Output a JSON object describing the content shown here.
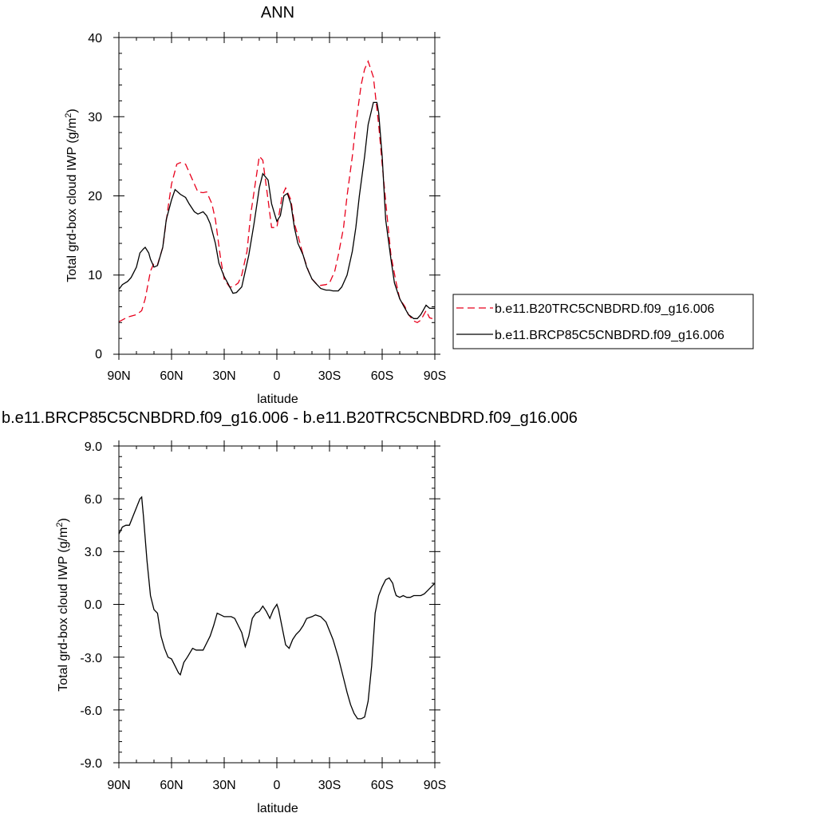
{
  "chart_data": [
    {
      "type": "line",
      "title": "ANN",
      "xlabel": "latitude",
      "ylabel": "Total grd-box cloud IWP (g/m",
      "ylabel_sup": "2",
      "ylabel_tail": ")",
      "xlim": [
        90,
        -90
      ],
      "ylim": [
        0,
        40
      ],
      "xticks": [
        90,
        60,
        30,
        0,
        -30,
        -60,
        -90
      ],
      "xtick_labels": [
        "90N",
        "60N",
        "30N",
        "0",
        "30S",
        "60S",
        "90S"
      ],
      "yticks": [
        0,
        10,
        20,
        30,
        40
      ],
      "ytick_labels": [
        "0",
        "10",
        "20",
        "30",
        "40"
      ],
      "legend_position": "right",
      "series": [
        {
          "name": "b.e11.B20TRC5CNBDRD.f09_g16.006",
          "color": "#e8001c",
          "dash": "dashed",
          "x": [
            90,
            85,
            80,
            77,
            75,
            72,
            70,
            68,
            65,
            62,
            60,
            57,
            55,
            52,
            50,
            47,
            45,
            42,
            40,
            37,
            35,
            32,
            30,
            27,
            25,
            22,
            20,
            17,
            15,
            12,
            10,
            8,
            5,
            3,
            0,
            -3,
            -5,
            -8,
            -10,
            -12,
            -15,
            -18,
            -20,
            -23,
            -25,
            -28,
            -30,
            -33,
            -35,
            -38,
            -40,
            -43,
            -45,
            -48,
            -50,
            -52,
            -55,
            -57,
            -58,
            -60,
            -63,
            -65,
            -68,
            -70,
            -73,
            -75,
            -78,
            -80,
            -82,
            -85,
            -87,
            -90
          ],
          "y": [
            4.1,
            4.7,
            5.0,
            5.5,
            7.0,
            10.5,
            11.5,
            11.3,
            13.5,
            18.5,
            21.5,
            24.0,
            24.2,
            24.0,
            23.0,
            21.5,
            20.5,
            20.4,
            20.5,
            19.0,
            17.0,
            12.0,
            9.5,
            8.5,
            8.5,
            9.0,
            10.0,
            13.0,
            17.5,
            22.0,
            25.0,
            24.5,
            19.5,
            16.0,
            16.0,
            20.0,
            21.0,
            19.5,
            16.5,
            15.0,
            12.5,
            10.5,
            9.5,
            8.8,
            8.7,
            8.8,
            9.0,
            10.5,
            12.5,
            16.0,
            20.0,
            25.0,
            29.0,
            34.0,
            36.0,
            37.0,
            35.0,
            31.0,
            29.0,
            24.0,
            17.0,
            12.5,
            9.0,
            7.0,
            6.0,
            5.0,
            4.2,
            4.0,
            4.3,
            5.5,
            4.6,
            4.4
          ]
        },
        {
          "name": "b.e11.BRCP85C5CNBDRD.f09_g16.006",
          "color": "#000000",
          "dash": "solid",
          "x": [
            90,
            88,
            85,
            83,
            80,
            78,
            76,
            75,
            73,
            72,
            70,
            68,
            65,
            63,
            60,
            58,
            57,
            55,
            52,
            50,
            47,
            45,
            42,
            40,
            38,
            35,
            33,
            30,
            28,
            25,
            23,
            20,
            18,
            16,
            13,
            10,
            8,
            5,
            3,
            1,
            0,
            -2,
            -4,
            -6,
            -8,
            -10,
            -12,
            -15,
            -17,
            -20,
            -22,
            -25,
            -28,
            -30,
            -32,
            -35,
            -37,
            -40,
            -43,
            -45,
            -47,
            -50,
            -52,
            -55,
            -57,
            -58,
            -60,
            -62,
            -65,
            -67,
            -70,
            -72,
            -75,
            -78,
            -80,
            -82,
            -85,
            -87,
            -90
          ],
          "y": [
            8.2,
            8.8,
            9.2,
            9.7,
            11.0,
            12.8,
            13.3,
            13.5,
            12.8,
            12.0,
            11.0,
            11.2,
            13.5,
            17.0,
            19.5,
            20.8,
            20.6,
            20.2,
            19.8,
            19.0,
            18.0,
            17.7,
            18.0,
            17.5,
            16.5,
            14.0,
            11.5,
            9.8,
            9.0,
            7.7,
            7.8,
            8.5,
            10.5,
            12.5,
            16.5,
            21.0,
            22.8,
            22.0,
            19.0,
            17.5,
            16.8,
            17.5,
            20.0,
            20.3,
            19.0,
            16.0,
            14.0,
            12.5,
            11.0,
            9.5,
            9.0,
            8.3,
            8.1,
            8.1,
            8.0,
            8.0,
            8.5,
            10.0,
            13.0,
            16.0,
            20.0,
            25.0,
            29.0,
            31.8,
            31.8,
            30.5,
            25.0,
            17.0,
            12.0,
            9.0,
            7.0,
            6.2,
            5.0,
            4.5,
            4.5,
            5.0,
            6.2,
            5.8,
            5.8
          ]
        }
      ]
    },
    {
      "type": "line",
      "title": "b.e11.BRCP85C5CNBDRD.f09_g16.006 - b.e11.B20TRC5CNBDRD.f09_g16.006",
      "xlabel": "latitude",
      "ylabel": "Total grd-box cloud IWP (g/m",
      "ylabel_sup": "2",
      "ylabel_tail": ")",
      "xlim": [
        90,
        -90
      ],
      "ylim": [
        -9,
        9
      ],
      "xticks": [
        90,
        60,
        30,
        0,
        -30,
        -60,
        -90
      ],
      "xtick_labels": [
        "90N",
        "60N",
        "30N",
        "0",
        "30S",
        "60S",
        "90S"
      ],
      "yticks": [
        -9,
        -6,
        -3,
        0,
        3,
        6,
        9
      ],
      "ytick_labels": [
        "-9.0",
        "-6.0",
        "-3.0",
        "0.0",
        "3.0",
        "6.0",
        "9.0"
      ],
      "series": [
        {
          "color": "#000000",
          "dash": "solid",
          "x": [
            90,
            88,
            86,
            84,
            82,
            80,
            78,
            77,
            76,
            74,
            72,
            70,
            68,
            66,
            64,
            62,
            60,
            58,
            56,
            55,
            53,
            51,
            48,
            46,
            44,
            42,
            40,
            38,
            36,
            34,
            32,
            30,
            28,
            26,
            24,
            22,
            20,
            18,
            16,
            14,
            12,
            10,
            8,
            6,
            4,
            2,
            0,
            -1,
            -3,
            -5,
            -7,
            -9,
            -11,
            -13,
            -15,
            -17,
            -20,
            -22,
            -25,
            -28,
            -30,
            -32,
            -35,
            -38,
            -40,
            -42,
            -44,
            -46,
            -48,
            -50,
            -52,
            -54,
            -55,
            -56,
            -58,
            -60,
            -62,
            -64,
            -66,
            -67,
            -68,
            -70,
            -72,
            -74,
            -76,
            -78,
            -80,
            -82,
            -84,
            -86,
            -88,
            -90
          ],
          "y": [
            4.0,
            4.4,
            4.5,
            4.5,
            5.0,
            5.5,
            6.0,
            6.1,
            5.0,
            2.5,
            0.5,
            -0.3,
            -0.5,
            -1.8,
            -2.5,
            -3.0,
            -3.1,
            -3.5,
            -3.9,
            -4.0,
            -3.3,
            -3.0,
            -2.5,
            -2.6,
            -2.6,
            -2.6,
            -2.2,
            -1.8,
            -1.2,
            -0.5,
            -0.6,
            -0.7,
            -0.7,
            -0.7,
            -0.8,
            -1.2,
            -1.6,
            -2.4,
            -1.8,
            -0.8,
            -0.5,
            -0.4,
            -0.1,
            -0.4,
            -0.8,
            -0.3,
            0.0,
            -0.3,
            -1.3,
            -2.3,
            -2.5,
            -2.0,
            -1.7,
            -1.5,
            -1.2,
            -0.8,
            -0.7,
            -0.6,
            -0.7,
            -1.0,
            -1.5,
            -2.0,
            -3.0,
            -4.2,
            -5.0,
            -5.7,
            -6.2,
            -6.5,
            -6.5,
            -6.4,
            -5.5,
            -3.5,
            -2.0,
            -0.5,
            0.5,
            1.0,
            1.4,
            1.5,
            1.2,
            0.8,
            0.5,
            0.4,
            0.5,
            0.4,
            0.4,
            0.5,
            0.5,
            0.5,
            0.6,
            0.8,
            1.0,
            1.2
          ]
        }
      ]
    }
  ]
}
